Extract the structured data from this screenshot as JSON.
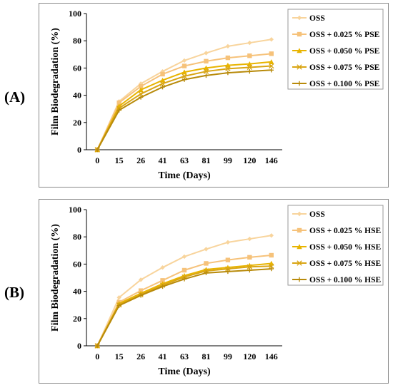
{
  "panels": [
    {
      "letter": "(A)",
      "chart_data": {
        "type": "line",
        "title": "",
        "xlabel": "Time (Days)",
        "ylabel": "Film Biodegradation (%)",
        "categories": [
          "0",
          "15",
          "26",
          "41",
          "63",
          "81",
          "99",
          "120",
          "146"
        ],
        "ylim": [
          0,
          100
        ],
        "yticks": [
          0,
          20,
          40,
          60,
          80,
          100
        ],
        "grid": false,
        "legend_position": "top-right",
        "series": [
          {
            "name": "OSS",
            "color": "#F8D49C",
            "marker": "diamond",
            "values": [
              0,
              35.5,
              48.5,
              57.5,
              65.5,
              71,
              76,
              78.5,
              81
            ]
          },
          {
            "name": "OSS + 0.025 % PSE",
            "color": "#F6C27A",
            "marker": "square",
            "values": [
              0,
              34.5,
              46.5,
              55.5,
              61.5,
              65,
              67.5,
              69,
              70.5
            ]
          },
          {
            "name": "OSS + 0.050 % PSE",
            "color": "#E8B400",
            "marker": "triangle",
            "values": [
              0,
              32,
              44,
              51,
              57,
              60,
              62,
              63,
              64.5
            ]
          },
          {
            "name": "OSS + 0.075 % PSE",
            "color": "#D9A514",
            "marker": "x",
            "values": [
              0,
              30.5,
              41,
              48.5,
              54,
              57.5,
              59.5,
              60.5,
              61.5
            ]
          },
          {
            "name": "OSS + 0.100 % PSE",
            "color": "#B88A0A",
            "marker": "plus",
            "values": [
              0,
              29,
              38.5,
              46,
              51.5,
              54.5,
              56.5,
              57.5,
              58.5
            ]
          }
        ]
      }
    },
    {
      "letter": "(B)",
      "chart_data": {
        "type": "line",
        "title": "",
        "xlabel": "Time (Days)",
        "ylabel": "Film Biodegradation (%)",
        "categories": [
          "0",
          "15",
          "26",
          "41",
          "63",
          "81",
          "99",
          "120",
          "146"
        ],
        "ylim": [
          0,
          100
        ],
        "yticks": [
          0,
          20,
          40,
          60,
          80,
          100
        ],
        "grid": false,
        "legend_position": "top-right",
        "series": [
          {
            "name": "OSS",
            "color": "#F8D49C",
            "marker": "diamond",
            "values": [
              0,
              35.5,
              48.5,
              57.5,
              65.5,
              71,
              76,
              78.5,
              81
            ]
          },
          {
            "name": "OSS + 0.025 % HSE",
            "color": "#F6C27A",
            "marker": "square",
            "values": [
              0,
              32,
              40.5,
              48,
              55.5,
              60.5,
              63,
              65,
              66.5
            ]
          },
          {
            "name": "OSS + 0.050 % HSE",
            "color": "#E8B400",
            "marker": "triangle",
            "values": [
              0,
              31,
              38.5,
              45.5,
              51.5,
              56,
              57.5,
              59,
              60.5
            ]
          },
          {
            "name": "OSS + 0.075 % HSE",
            "color": "#D9A514",
            "marker": "x",
            "values": [
              0,
              30,
              37.5,
              44.5,
              50.5,
              55,
              56.5,
              58,
              58.5
            ]
          },
          {
            "name": "OSS + 0.100 % HSE",
            "color": "#B88A0A",
            "marker": "plus",
            "values": [
              0,
              29.5,
              37,
              43.5,
              49,
              53.5,
              54.5,
              55.5,
              56.5
            ]
          }
        ]
      }
    }
  ]
}
